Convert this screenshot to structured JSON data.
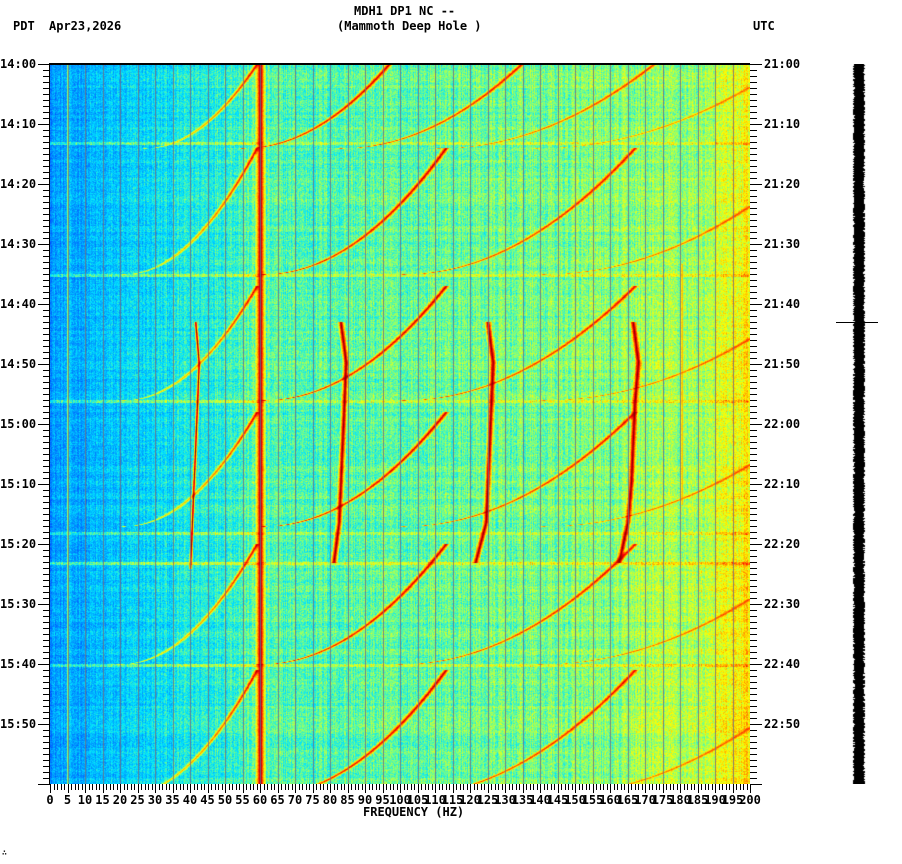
{
  "header": {
    "station": "MDH1 DP1 NC --",
    "site": "(Mammoth Deep Hole )",
    "left_tz": "PDT",
    "date": "Apr23,2026",
    "right_tz": "UTC"
  },
  "footer_mark": "∴",
  "chart_data": {
    "type": "heatmap",
    "title": "MDH1 DP1 NC -- (Mammoth Deep Hole )",
    "subtitle": "Apr23,2026",
    "xlabel": "FREQUENCY (HZ)",
    "ylabel_left": "PDT",
    "ylabel_right": "UTC",
    "xlim": [
      0,
      200
    ],
    "x_ticks": [
      0,
      5,
      10,
      15,
      20,
      25,
      30,
      35,
      40,
      45,
      50,
      55,
      60,
      65,
      70,
      75,
      80,
      85,
      90,
      95,
      100,
      105,
      110,
      115,
      120,
      125,
      130,
      135,
      140,
      145,
      150,
      155,
      160,
      165,
      170,
      175,
      180,
      185,
      190,
      195,
      200
    ],
    "x_tick_labels": [
      "0",
      "5",
      "10",
      "15",
      "20",
      "25",
      "30",
      "35",
      "40",
      "45",
      "50",
      "55",
      "60",
      "65",
      "70",
      "75",
      "80",
      "85",
      "90",
      "95",
      "100",
      "105",
      "110",
      "115",
      "120",
      "125",
      "130",
      "135",
      "140",
      "145",
      "150",
      "155",
      "160",
      "165",
      "170",
      "175",
      "180",
      "185",
      "190",
      "195",
      "200"
    ],
    "x_minor_tick_step": 1,
    "y_ticks_left": [
      "14:00",
      "14:10",
      "14:20",
      "14:30",
      "14:40",
      "14:50",
      "15:00",
      "15:10",
      "15:20",
      "15:30",
      "15:40",
      "15:50"
    ],
    "y_ticks_right": [
      "21:00",
      "21:10",
      "21:20",
      "21:30",
      "21:40",
      "21:50",
      "22:00",
      "22:10",
      "22:20",
      "22:30",
      "22:40",
      "22:50"
    ],
    "y_range_minutes": 120,
    "y_minor_tick_step_minutes": 1,
    "grid": "vertical every 5 Hz",
    "colormap": [
      "#0050ff",
      "#0096ff",
      "#00e5ff",
      "#7dff80",
      "#ffff00",
      "#ff9000",
      "#ff0000",
      "#800000"
    ],
    "background_trend": "low (blue) at 0-25 Hz, rising to cyan/green mid-band, yellow-orange above 185 Hz",
    "constant_lines_hz": [
      {
        "freq": 60,
        "intensity": 1.0,
        "width": 1.5
      },
      {
        "freq": 5,
        "intensity": 0.55,
        "width": 0.3
      },
      {
        "freq": 180.5,
        "intensity": 0.7,
        "width": 0.3
      }
    ],
    "sweep_groups": [
      {
        "start_min": 14,
        "end_min": 0,
        "start_hz": 27,
        "end_hz": 59,
        "spacing_hz": [
          0,
          28,
          56,
          84,
          112
        ]
      },
      {
        "start_min": 35,
        "end_min": 14,
        "start_hz": 21,
        "end_hz": 59,
        "spacing_hz": [
          0,
          40,
          80,
          120
        ]
      },
      {
        "start_min": 56,
        "end_min": 37,
        "start_hz": 21,
        "end_hz": 59,
        "spacing_hz": [
          0,
          40,
          80,
          120
        ]
      },
      {
        "start_min": 77,
        "end_min": 58,
        "start_hz": 21,
        "end_hz": 59,
        "spacing_hz": [
          0,
          40,
          80,
          120
        ]
      },
      {
        "start_min": 100,
        "end_min": 80,
        "start_hz": 20,
        "end_hz": 59,
        "spacing_hz": [
          0,
          40,
          80,
          120
        ]
      },
      {
        "start_min": 122,
        "end_min": 101,
        "start_hz": 20,
        "end_hz": 59,
        "spacing_hz": [
          0,
          40,
          80,
          120
        ]
      }
    ],
    "vertical_tracks": [
      {
        "start_min": 43,
        "end_min": 84,
        "points_hz": [
          41.5,
          42.5,
          42,
          41.5,
          41,
          40.5,
          40
        ]
      },
      {
        "start_min": 43,
        "end_min": 83,
        "points_hz": [
          83,
          84.5,
          84,
          83.5,
          83,
          82.5,
          81
        ]
      },
      {
        "start_min": 43,
        "end_min": 83,
        "points_hz": [
          125,
          126.5,
          126,
          125.5,
          125,
          124.5,
          121.5
        ]
      },
      {
        "start_min": 43,
        "end_min": 83,
        "points_hz": [
          166.5,
          168,
          167,
          166.5,
          166,
          165,
          162.5
        ]
      }
    ],
    "horizontal_bands_min": [
      13,
      35,
      56,
      78,
      83,
      100
    ]
  },
  "trace": {
    "marker_y": 322
  }
}
